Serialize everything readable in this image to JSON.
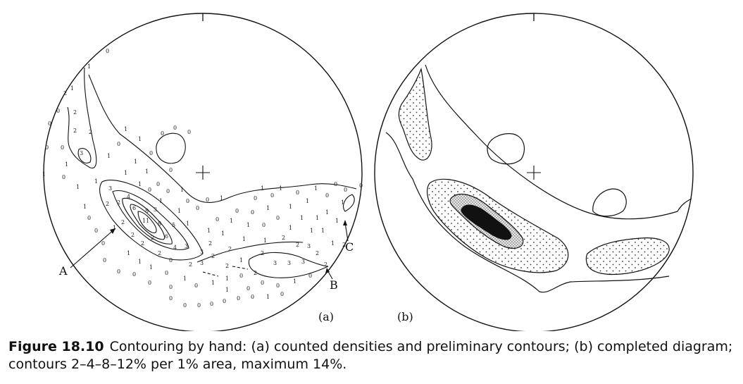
{
  "panel_a": {
    "label": "(a)",
    "callouts": {
      "A": "A",
      "B": "B",
      "C": "C"
    }
  },
  "panel_b": {
    "label": "(b)"
  },
  "caption": {
    "label": "Figure 18.10",
    "text": "Contouring by hand: (a) counted densities and preliminary contours; (b) completed diagram; contours 2–4–8–12% per 1% area, maximum 14%."
  }
}
